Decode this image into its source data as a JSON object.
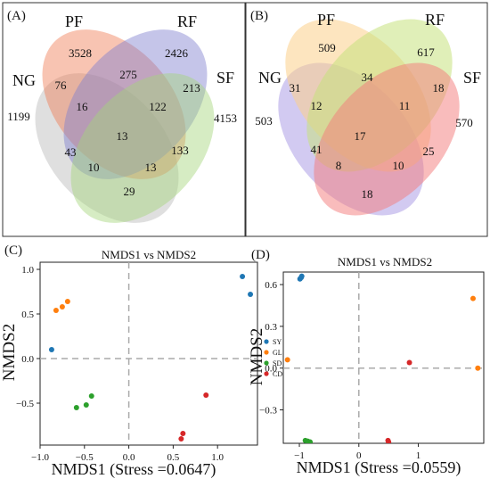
{
  "venn_a": {
    "panel_label": "(A)",
    "sets": [
      {
        "name": "NG",
        "color": "#b8b8b8"
      },
      {
        "name": "PF",
        "color": "#f07d55"
      },
      {
        "name": "RF",
        "color": "#7f7fcf"
      },
      {
        "name": "SF",
        "color": "#a4d57a"
      }
    ],
    "counts": {
      "PF": "3528",
      "RF": "2426",
      "NG": "1199",
      "SF": "4153",
      "NG_PF": "76",
      "PF_RF": "275",
      "RF_SF": "213",
      "NG_PF_RF": "16",
      "PF_RF_SF": "122",
      "ALL": "13",
      "NG_RF": "43",
      "NG_RF_SF": "10",
      "NG_PF_SF": "13",
      "PF_SF": "133",
      "NG_SF": "29"
    }
  },
  "venn_b": {
    "panel_label": "(B)",
    "sets": [
      {
        "name": "NG",
        "color": "#9b89e0"
      },
      {
        "name": "PF",
        "color": "#fbd08a"
      },
      {
        "name": "RF",
        "color": "#c6e27e"
      },
      {
        "name": "SF",
        "color": "#f47a7a"
      }
    ],
    "counts": {
      "PF": "509",
      "RF": "617",
      "NG": "503",
      "SF": "570",
      "NG_PF": "31",
      "PF_RF": "34",
      "RF_SF": "18",
      "NG_PF_RF": "12",
      "PF_RF_SF": "11",
      "ALL": "17",
      "NG_RF": "41",
      "NG_RF_SF": "8",
      "NG_PF_SF": "10",
      "PF_SF": "25",
      "NG_SF": "18"
    }
  },
  "chart_data": [
    {
      "type": "scatter",
      "panel_label": "(C)",
      "title": "NMDS1 vs NMDS2",
      "xlabel": "NMDS1 (Stress =0.0647)",
      "ylabel": "NMDS2",
      "xlim": [
        -1.0,
        1.45
      ],
      "ylim": [
        -0.97,
        1.08
      ],
      "xticks": [
        -1.0,
        -0.5,
        0.0,
        0.5,
        1.0
      ],
      "xtick_labels": [
        "−1.0",
        "−0.5",
        "0.0",
        "0.5",
        "1.0"
      ],
      "yticks": [
        -0.5,
        0.0,
        0.5,
        1.0
      ],
      "ytick_labels": [
        "−0.5",
        "0.0",
        "0.5",
        "1.0"
      ],
      "legend_position": "right",
      "series": [
        {
          "name": "SY",
          "color": "#1f77b4",
          "points": [
            [
              -0.87,
              0.1
            ],
            [
              1.28,
              0.92
            ],
            [
              1.37,
              0.72
            ]
          ]
        },
        {
          "name": "GL",
          "color": "#ff7f0e",
          "points": [
            [
              -0.82,
              0.54
            ],
            [
              -0.75,
              0.58
            ],
            [
              -0.69,
              0.64
            ]
          ]
        },
        {
          "name": "SD",
          "color": "#2ca02c",
          "points": [
            [
              -0.59,
              -0.55
            ],
            [
              -0.48,
              -0.52
            ],
            [
              -0.42,
              -0.42
            ]
          ]
        },
        {
          "name": "CD",
          "color": "#d62728",
          "points": [
            [
              0.59,
              -0.9
            ],
            [
              0.61,
              -0.84
            ],
            [
              0.87,
              -0.41
            ]
          ]
        }
      ]
    },
    {
      "type": "scatter",
      "panel_label": "(D)",
      "title": "NMDS1 vs NMDS2",
      "xlabel": "NMDS1 (Stress =0.0559)",
      "ylabel": "NMDS2",
      "xlim": [
        -1.27,
        2.1
      ],
      "ylim": [
        -0.54,
        0.69
      ],
      "xticks": [
        -1,
        0,
        1
      ],
      "xtick_labels": [
        "−1",
        "0",
        "1"
      ],
      "yticks": [
        -0.3,
        0.0,
        0.3,
        0.6
      ],
      "ytick_labels": [
        "−0.3",
        "0.0",
        "0.3",
        "0.6"
      ],
      "series": [
        {
          "name": "SY",
          "color": "#1f77b4",
          "points": [
            [
              -0.99,
              0.64
            ],
            [
              -0.97,
              0.65
            ],
            [
              -0.96,
              0.66
            ]
          ]
        },
        {
          "name": "GL",
          "color": "#ff7f0e",
          "points": [
            [
              -1.2,
              0.06
            ],
            [
              1.92,
              0.5
            ],
            [
              2.0,
              0.0
            ]
          ]
        },
        {
          "name": "SD",
          "color": "#2ca02c",
          "points": [
            [
              -0.9,
              -0.52
            ],
            [
              -0.86,
              -0.525
            ],
            [
              -0.82,
              -0.53
            ]
          ]
        },
        {
          "name": "CD",
          "color": "#d62728",
          "points": [
            [
              0.49,
              -0.52
            ],
            [
              0.5,
              -0.53
            ],
            [
              0.85,
              0.04
            ]
          ]
        }
      ]
    }
  ]
}
